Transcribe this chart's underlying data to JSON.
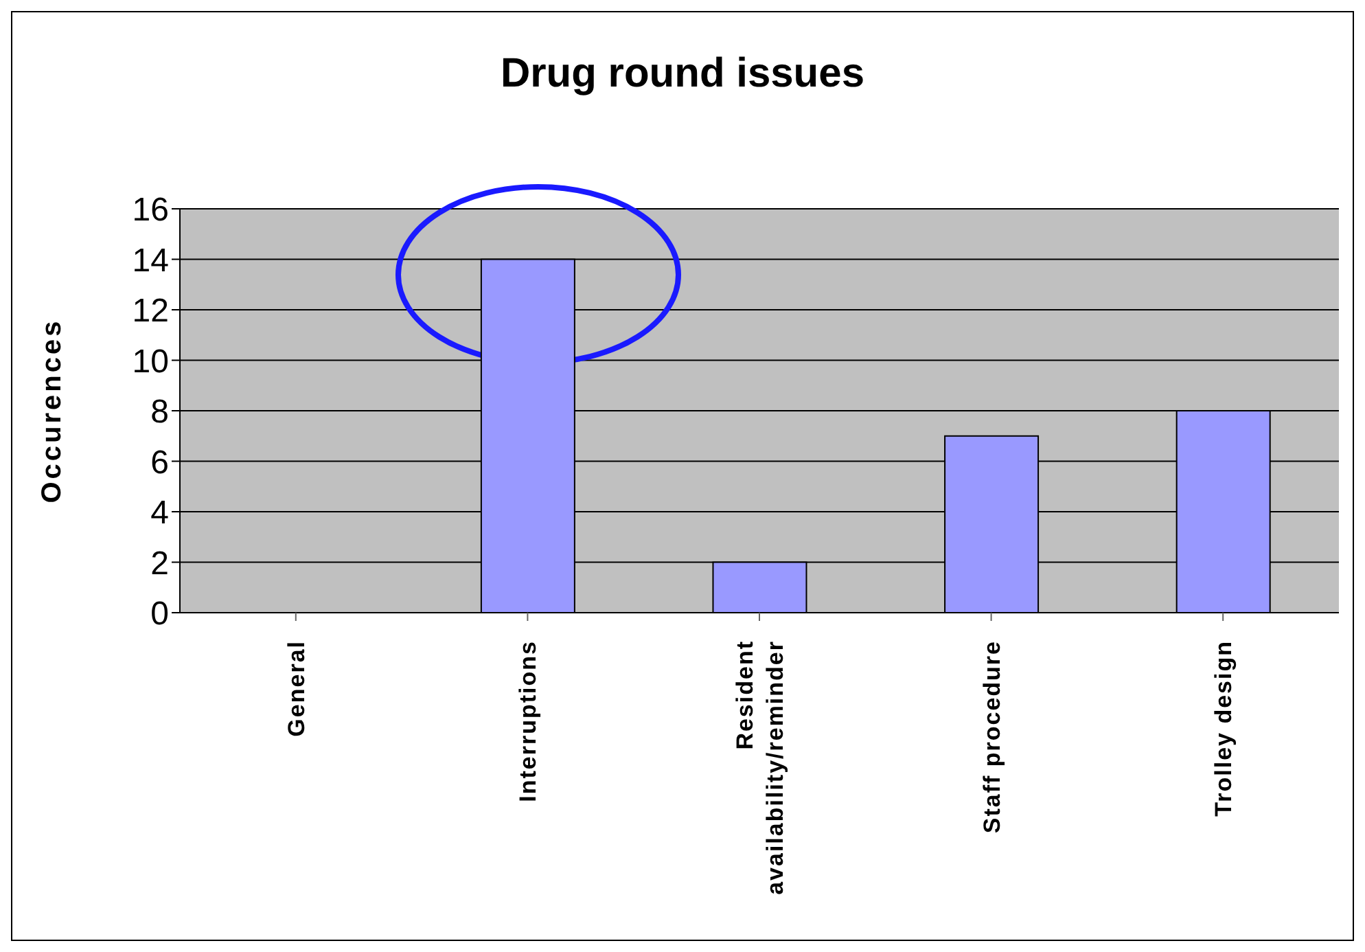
{
  "chart_data": {
    "type": "bar",
    "title": "Drug round issues",
    "ylabel": "Occurences",
    "categories": [
      "General",
      "Interruptions",
      "Resident availability/reminder",
      "Staff procedure",
      "Trolley design"
    ],
    "values": [
      0,
      14,
      2,
      7,
      8
    ],
    "color": "#9999ff",
    "ylim": [
      0,
      16
    ],
    "yticks": [
      0,
      2,
      4,
      6,
      8,
      10,
      12,
      14,
      16
    ],
    "grid": "y"
  }
}
